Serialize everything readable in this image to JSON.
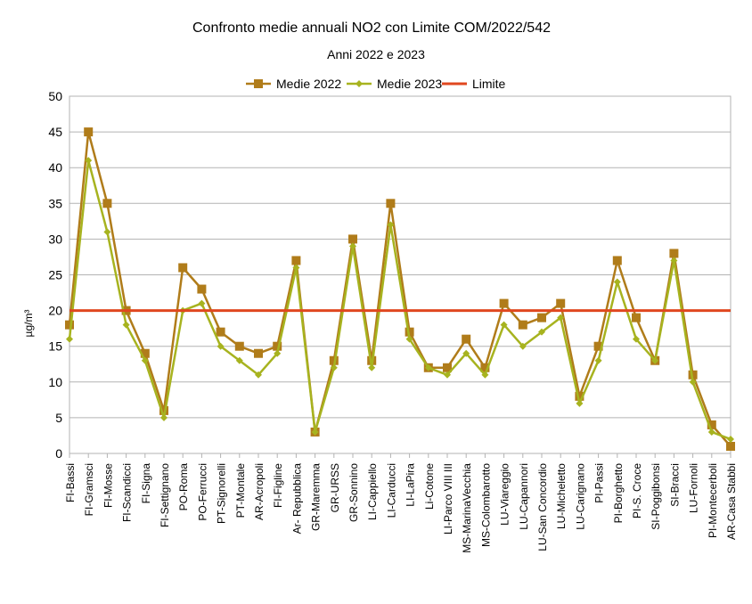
{
  "chart_data": {
    "type": "line",
    "title": "Confronto medie annuali NO2 con Limite  COM/2022/542",
    "subtitle": "Anni 2022 e 2023",
    "xlabel": "",
    "ylabel": "µg/m³",
    "ylim": [
      0,
      50
    ],
    "yticks": [
      0,
      5,
      10,
      15,
      20,
      25,
      30,
      35,
      40,
      45,
      50
    ],
    "grid": true,
    "legend_position": "top-center",
    "categories": [
      "FI-Bassi",
      "FI-Gramsci",
      "FI-Mosse",
      "FI-Scandicci",
      "FI-Signa",
      "FI-Settignano",
      "PO-Roma",
      "PO-Ferrucci",
      "PT-Signorelli",
      "PT-Montale",
      "AR-Acropoli",
      "FI-Figline",
      "Ar- Repubblica",
      "GR-Maremma",
      "GR-URSS",
      "GR-Sonnino",
      "LI-Cappiello",
      "LI-Carducci",
      "LI-LaPira",
      "Li-Cotone",
      "LI-Parco VIII III",
      "MS-MarinaVecchia",
      "MS-Colombarotto",
      "LU-Viareggio",
      "LU-Capannori",
      "LU-San Concordio",
      "LU-Micheletto",
      "LU-Carignano",
      "PI-Passi",
      "PI-Borghetto",
      "PI-S. Croce",
      "SI-Poggibonsi",
      "SI-Bracci",
      "LU-Fornoli",
      "PI-Montecerboli",
      "AR-Casa Stabbi"
    ],
    "series": [
      {
        "name": "Medie 2022",
        "color": "#b07c1a",
        "marker": "square",
        "values": [
          18,
          45,
          35,
          20,
          14,
          6,
          26,
          23,
          17,
          15,
          14,
          15,
          27,
          3,
          13,
          30,
          13,
          35,
          17,
          12,
          12,
          16,
          12,
          21,
          18,
          19,
          21,
          8,
          15,
          27,
          19,
          13,
          28,
          11,
          4,
          1
        ]
      },
      {
        "name": "Medie 2023",
        "color": "#a7b31f",
        "marker": "diamond",
        "values": [
          16,
          41,
          31,
          18,
          13,
          5,
          20,
          21,
          15,
          13,
          11,
          14,
          26,
          3,
          12,
          29,
          12,
          32,
          16,
          12,
          11,
          14,
          11,
          18,
          15,
          17,
          19,
          7,
          13,
          24,
          16,
          13,
          27,
          10,
          3,
          2
        ]
      },
      {
        "name": "Limite",
        "color": "#e0471f",
        "marker": "none",
        "values": [
          20,
          20,
          20,
          20,
          20,
          20,
          20,
          20,
          20,
          20,
          20,
          20,
          20,
          20,
          20,
          20,
          20,
          20,
          20,
          20,
          20,
          20,
          20,
          20,
          20,
          20,
          20,
          20,
          20,
          20,
          20,
          20,
          20,
          20,
          20,
          20
        ]
      }
    ]
  }
}
